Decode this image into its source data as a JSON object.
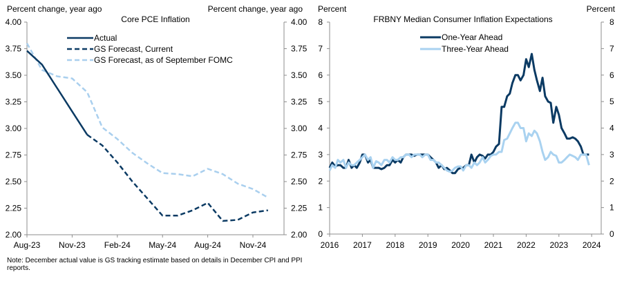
{
  "chart_data": [
    {
      "type": "line",
      "title": "Core PCE Inflation",
      "ylabel_left": "Percent change, year ago",
      "ylabel_right": "Percent change, year ago",
      "ylim": [
        2.0,
        4.0
      ],
      "yticks": [
        "4.00",
        "3.75",
        "3.50",
        "3.25",
        "3.00",
        "2.75",
        "2.50",
        "2.25",
        "2.00"
      ],
      "yticks_right": [
        "4.00",
        "3.75",
        "3.50",
        "3.25",
        "3.00",
        "2.75",
        "2.50",
        "2.25",
        "2.00"
      ],
      "xticks": [
        "Aug-23",
        "Nov-23",
        "Feb-24",
        "May-24",
        "Aug-24",
        "Nov-24"
      ],
      "x": [
        "Aug-23",
        "Sep-23",
        "Oct-23",
        "Nov-23",
        "Dec-23",
        "Jan-24",
        "Feb-24",
        "Mar-24",
        "Apr-24",
        "May-24",
        "Jun-24",
        "Jul-24",
        "Aug-24",
        "Sep-24",
        "Oct-24",
        "Nov-24",
        "Dec-24"
      ],
      "legend_position": "top-center",
      "series": [
        {
          "name": "Actual",
          "style": "solid",
          "color": "#0b3a63",
          "values": [
            3.73,
            3.6,
            3.38,
            3.16,
            2.94,
            null,
            null,
            null,
            null,
            null,
            null,
            null,
            null,
            null,
            null,
            null,
            null
          ]
        },
        {
          "name": "GS Forecast, Current",
          "style": "dashed",
          "color": "#0b3a63",
          "values": [
            null,
            null,
            null,
            null,
            2.94,
            2.84,
            2.68,
            2.5,
            2.34,
            2.18,
            2.18,
            2.23,
            2.3,
            2.13,
            2.14,
            2.21,
            2.23
          ]
        },
        {
          "name": "GS Forecast, as of September FOMC",
          "style": "dashed",
          "color": "#a9cfee",
          "values": [
            3.8,
            3.55,
            3.49,
            3.47,
            3.34,
            3.01,
            2.9,
            2.77,
            2.67,
            2.58,
            2.57,
            2.55,
            2.62,
            2.57,
            2.48,
            2.43,
            2.35
          ]
        }
      ]
    },
    {
      "type": "line",
      "title": "FRBNY Median Consumer Inflation Expectations",
      "ylabel_left": "Percent",
      "ylabel_right": "Percent",
      "ylim": [
        0,
        8
      ],
      "yticks": [
        "8",
        "7",
        "6",
        "5",
        "4",
        "3",
        "2",
        "1",
        "0"
      ],
      "xticks": [
        "2016",
        "2017",
        "2018",
        "2019",
        "2020",
        "2021",
        "2022",
        "2023",
        "2024"
      ],
      "xlim": [
        2016.0,
        2024.0
      ],
      "legend_position": "top-center",
      "series": [
        {
          "name": "One-Year Ahead",
          "color": "#0b3a63",
          "x": [
            2016.0,
            2016.08,
            2016.17,
            2016.25,
            2016.33,
            2016.42,
            2016.5,
            2016.58,
            2016.67,
            2016.75,
            2016.83,
            2016.92,
            2017.0,
            2017.08,
            2017.17,
            2017.25,
            2017.33,
            2017.42,
            2017.5,
            2017.58,
            2017.67,
            2017.75,
            2017.83,
            2017.92,
            2018.0,
            2018.08,
            2018.17,
            2018.25,
            2018.33,
            2018.42,
            2018.5,
            2018.58,
            2018.67,
            2018.75,
            2018.83,
            2018.92,
            2019.0,
            2019.08,
            2019.17,
            2019.25,
            2019.33,
            2019.42,
            2019.5,
            2019.58,
            2019.67,
            2019.75,
            2019.83,
            2019.92,
            2020.0,
            2020.08,
            2020.17,
            2020.25,
            2020.33,
            2020.42,
            2020.5,
            2020.58,
            2020.67,
            2020.75,
            2020.83,
            2020.92,
            2021.0,
            2021.08,
            2021.17,
            2021.25,
            2021.33,
            2021.42,
            2021.5,
            2021.58,
            2021.67,
            2021.75,
            2021.83,
            2021.92,
            2022.0,
            2022.08,
            2022.17,
            2022.25,
            2022.33,
            2022.42,
            2022.5,
            2022.58,
            2022.67,
            2022.75,
            2022.83,
            2022.92,
            2023.0,
            2023.08,
            2023.17,
            2023.25,
            2023.33,
            2023.42,
            2023.5,
            2023.58,
            2023.67,
            2023.75,
            2023.83,
            2023.92
          ],
          "values": [
            2.5,
            2.7,
            2.55,
            2.6,
            2.6,
            2.5,
            2.5,
            2.8,
            2.5,
            2.6,
            2.5,
            2.7,
            3.0,
            3.0,
            2.7,
            2.8,
            2.5,
            2.5,
            2.5,
            2.45,
            2.5,
            2.6,
            2.6,
            2.8,
            2.7,
            2.8,
            2.7,
            2.9,
            3.0,
            3.0,
            3.0,
            2.95,
            3.0,
            3.0,
            3.0,
            3.0,
            3.0,
            2.9,
            2.8,
            2.7,
            2.5,
            2.6,
            2.45,
            2.5,
            2.4,
            2.3,
            2.3,
            2.45,
            2.5,
            2.5,
            2.6,
            2.6,
            3.0,
            2.7,
            2.9,
            3.0,
            2.95,
            2.85,
            3.0,
            3.0,
            3.1,
            3.3,
            3.4,
            4.8,
            4.8,
            5.2,
            5.3,
            5.7,
            6.0,
            6.0,
            5.8,
            6.0,
            6.6,
            6.3,
            6.8,
            6.2,
            5.8,
            5.4,
            5.9,
            5.2,
            5.0,
            4.95,
            4.2,
            4.8,
            4.5,
            4.0,
            3.8,
            3.6,
            3.6,
            3.65,
            3.6,
            3.5,
            3.3,
            3.0,
            3.0,
            3.0
          ]
        },
        {
          "name": "Three-Year Ahead",
          "color": "#a9d2f0",
          "x": [
            2016.0,
            2016.08,
            2016.17,
            2016.25,
            2016.33,
            2016.42,
            2016.5,
            2016.58,
            2016.67,
            2016.75,
            2016.83,
            2016.92,
            2017.0,
            2017.08,
            2017.17,
            2017.25,
            2017.33,
            2017.42,
            2017.5,
            2017.58,
            2017.67,
            2017.75,
            2017.83,
            2017.92,
            2018.0,
            2018.08,
            2018.17,
            2018.25,
            2018.33,
            2018.42,
            2018.5,
            2018.58,
            2018.67,
            2018.75,
            2018.83,
            2018.92,
            2019.0,
            2019.08,
            2019.17,
            2019.25,
            2019.33,
            2019.42,
            2019.5,
            2019.58,
            2019.67,
            2019.75,
            2019.83,
            2019.92,
            2020.0,
            2020.08,
            2020.17,
            2020.25,
            2020.33,
            2020.42,
            2020.5,
            2020.58,
            2020.67,
            2020.75,
            2020.83,
            2020.92,
            2021.0,
            2021.08,
            2021.17,
            2021.25,
            2021.33,
            2021.42,
            2021.5,
            2021.58,
            2021.67,
            2021.75,
            2021.83,
            2021.92,
            2022.0,
            2022.08,
            2022.17,
            2022.25,
            2022.33,
            2022.42,
            2022.5,
            2022.58,
            2022.67,
            2022.75,
            2022.83,
            2022.92,
            2023.0,
            2023.08,
            2023.17,
            2023.25,
            2023.33,
            2023.42,
            2023.5,
            2023.58,
            2023.67,
            2023.75,
            2023.83,
            2023.92
          ],
          "values": [
            2.4,
            2.6,
            2.5,
            2.8,
            2.7,
            2.8,
            2.5,
            2.7,
            2.6,
            2.6,
            2.7,
            2.8,
            2.9,
            3.0,
            2.8,
            2.9,
            2.5,
            2.75,
            2.7,
            2.6,
            2.8,
            2.8,
            2.7,
            2.9,
            2.8,
            2.8,
            2.9,
            2.9,
            3.0,
            3.0,
            2.9,
            3.0,
            3.0,
            3.0,
            2.9,
            3.0,
            3.0,
            2.8,
            2.8,
            2.7,
            2.7,
            2.6,
            2.5,
            2.4,
            2.35,
            2.4,
            2.5,
            2.55,
            2.55,
            2.4,
            2.6,
            2.6,
            2.5,
            2.7,
            2.6,
            2.7,
            2.9,
            2.7,
            2.8,
            2.95,
            3.0,
            3.0,
            3.1,
            3.1,
            3.55,
            3.6,
            3.8,
            4.0,
            4.2,
            4.2,
            4.0,
            4.0,
            3.5,
            3.8,
            3.7,
            3.9,
            3.8,
            3.5,
            3.1,
            2.8,
            2.9,
            3.1,
            3.0,
            2.95,
            2.7,
            2.7,
            2.8,
            2.9,
            3.0,
            2.95,
            2.9,
            2.8,
            3.0,
            3.0,
            3.0,
            2.6
          ]
        }
      ]
    }
  ],
  "note": "Note: December actual value is GS tracking estimate based on details in December CPI and PPI  reports."
}
